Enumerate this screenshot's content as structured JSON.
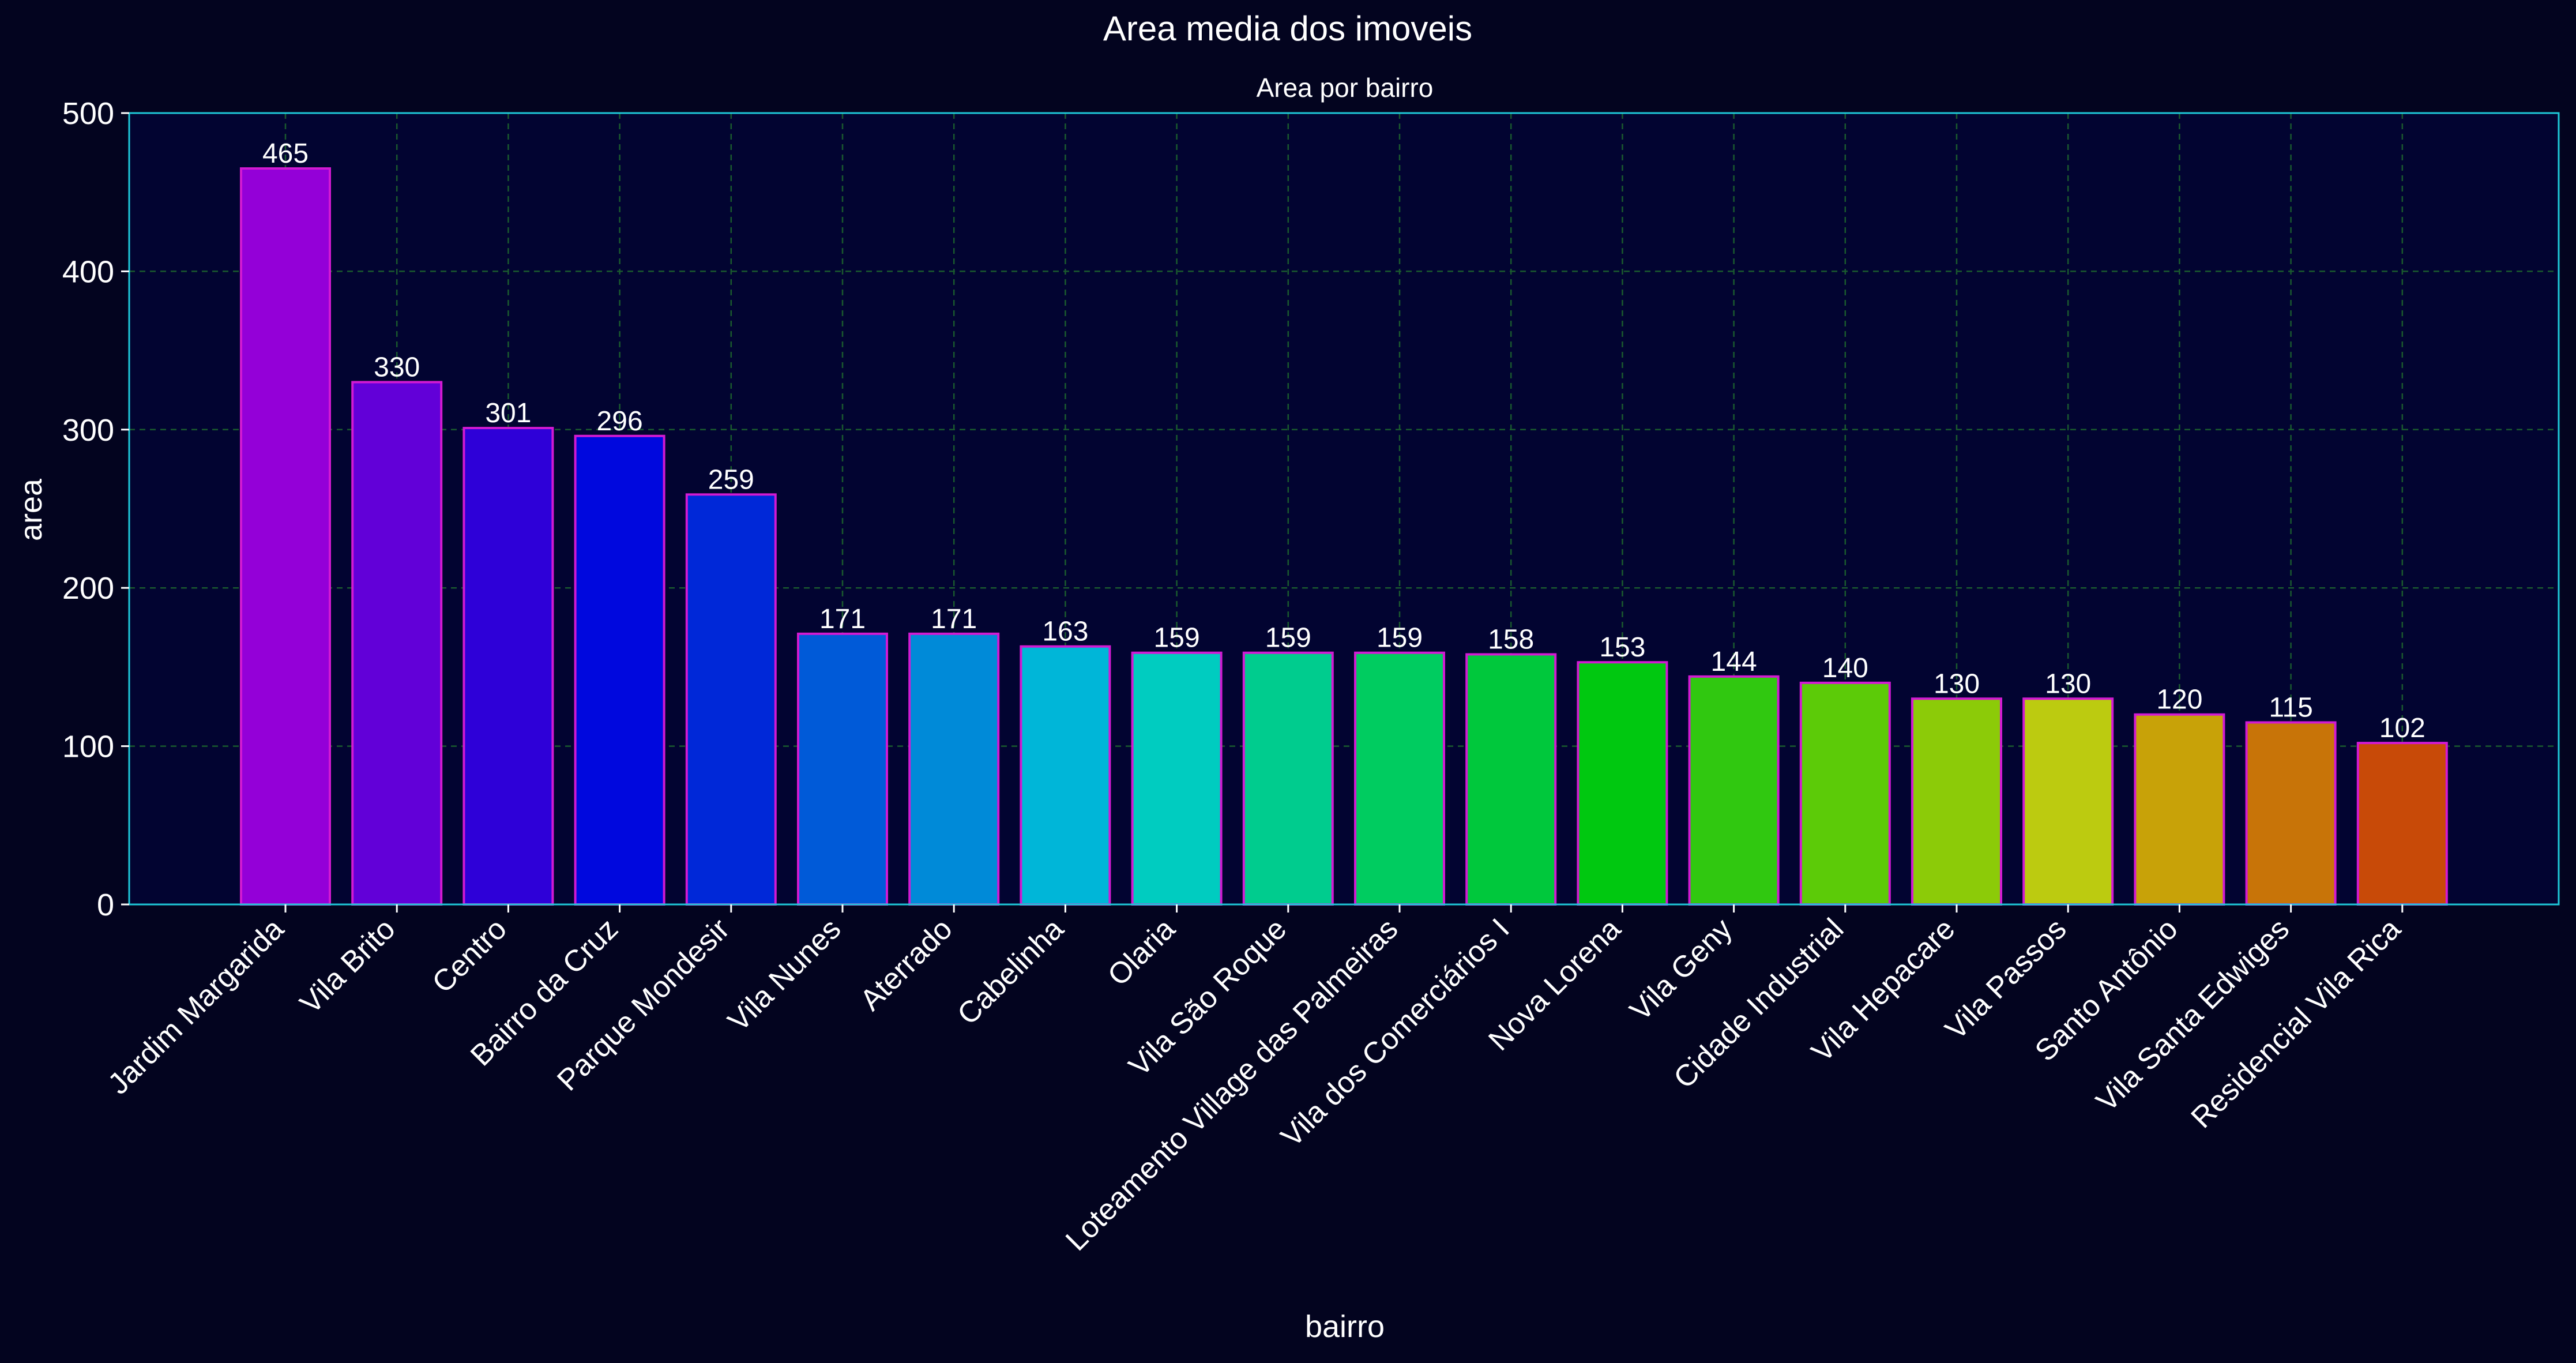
{
  "figure": {
    "background": "#03041f",
    "plot_background": "#020431",
    "axes_edge_color": "#1ec8d8",
    "grid_color": "#1a5a2e",
    "bar_edge_color": "#d21ad2",
    "text_color": "#ffffff"
  },
  "chart_data": {
    "type": "bar",
    "title": "Area media dos imoveis",
    "subtitle": "Area por bairro",
    "xlabel": "bairro",
    "ylabel": "area",
    "ylim": [
      0,
      500
    ],
    "yticks": [
      0,
      100,
      200,
      300,
      400,
      500
    ],
    "grid": true,
    "categories": [
      "Jardim Margarida",
      "Vila Brito",
      "Centro",
      "Bairro da Cruz",
      "Parque Mondesir",
      "Vila Nunes",
      "Aterrado",
      "Cabelinha",
      "Olaria",
      "Vila São Roque",
      "Loteamento Village das Palmeiras",
      "Vila dos Comerciários I",
      "Nova Lorena",
      "Vila Geny",
      "Cidade Industrial",
      "Vila Hepacare",
      "Vila Passos",
      "Santo Antônio",
      "Vila Santa Edwiges",
      "Residencial Vila Rica"
    ],
    "values": [
      465,
      330,
      301,
      296,
      259,
      171,
      171,
      163,
      159,
      159,
      159,
      158,
      153,
      144,
      140,
      130,
      130,
      120,
      115,
      102
    ],
    "data_labels": [
      "465",
      "330",
      "301",
      "296",
      "259",
      "171",
      "171",
      "163",
      "159",
      "159",
      "159",
      "158",
      "153",
      "144",
      "140",
      "130",
      "130",
      "120",
      "115",
      "102"
    ],
    "colors": [
      "#9400d8",
      "#6200d8",
      "#2e00d8",
      "#0008de",
      "#0028d8",
      "#005ad8",
      "#008ad8",
      "#00b6d8",
      "#00ccc0",
      "#00cc8e",
      "#00cc60",
      "#00c83c",
      "#00c810",
      "#30c810",
      "#5ccb08",
      "#8ccb08",
      "#bccb10",
      "#c8a208",
      "#c87408",
      "#c84a08"
    ]
  }
}
